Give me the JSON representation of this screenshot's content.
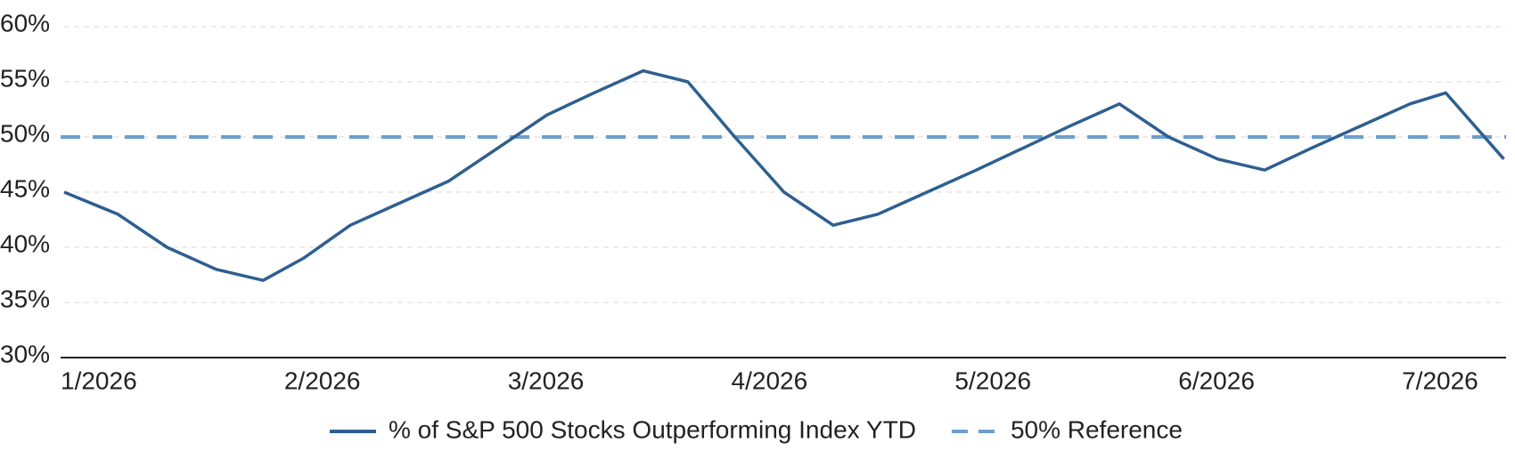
{
  "chart_data": {
    "type": "line",
    "x": [
      1,
      1.24,
      1.46,
      1.68,
      1.89,
      2.07,
      2.28,
      2.5,
      2.72,
      2.94,
      3.16,
      3.37,
      3.59,
      3.79,
      4.0,
      4.22,
      4.44,
      4.64,
      4.86,
      5.08,
      5.29,
      5.5,
      5.72,
      5.94,
      6.16,
      6.37,
      6.58,
      6.8,
      7.02,
      7.18,
      7.44
    ],
    "series": [
      {
        "name": "% of S&P 500 Stocks Outperforming Index YTD",
        "color": "#2e5f8f",
        "values": [
          45,
          43,
          40,
          38,
          37,
          39,
          42,
          44,
          46,
          49,
          52,
          54,
          56,
          55,
          50,
          45,
          42,
          43,
          45,
          47,
          49,
          51,
          53,
          50,
          48,
          47,
          49,
          51,
          53,
          54,
          48
        ]
      }
    ],
    "reference_line": {
      "name": "50% Reference",
      "value": 50,
      "color": "#6a9fd0"
    },
    "xlim": [
      1,
      7.45
    ],
    "xticks": [
      {
        "value": 1,
        "label": "1/2026"
      },
      {
        "value": 2,
        "label": "2/2026"
      },
      {
        "value": 3,
        "label": "3/2026"
      },
      {
        "value": 4,
        "label": "4/2026"
      },
      {
        "value": 5,
        "label": "5/2026"
      },
      {
        "value": 6,
        "label": "6/2026"
      },
      {
        "value": 7,
        "label": "7/2026"
      }
    ],
    "ylim": [
      30,
      60
    ],
    "yticks": [
      {
        "value": 30,
        "label": "30%"
      },
      {
        "value": 35,
        "label": "35%"
      },
      {
        "value": 40,
        "label": "40%"
      },
      {
        "value": 45,
        "label": "45%"
      },
      {
        "value": 50,
        "label": "50%"
      },
      {
        "value": 55,
        "label": "55%"
      },
      {
        "value": 60,
        "label": "60%"
      }
    ],
    "grid": true,
    "legend": "bottom"
  }
}
